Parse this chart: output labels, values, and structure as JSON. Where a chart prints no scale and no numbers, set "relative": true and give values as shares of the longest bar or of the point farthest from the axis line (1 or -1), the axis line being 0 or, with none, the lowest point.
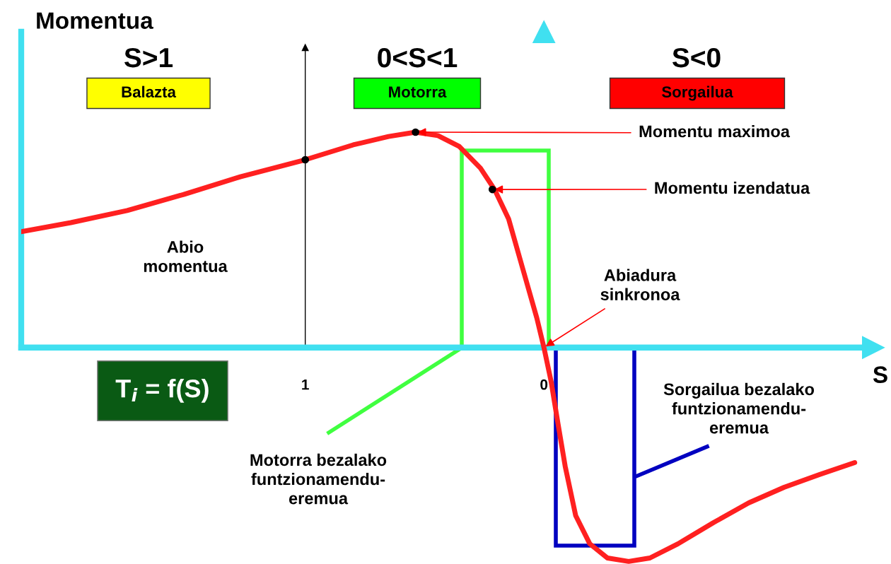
{
  "chart_data": {
    "type": "line",
    "relative": true,
    "ylabel": "Momentua",
    "xlabel": "S",
    "x": [
      2.19,
      1.982,
      1.746,
      1.509,
      1.272,
      1.0,
      0.799,
      0.651,
      0.538,
      0.444,
      0.355,
      0.266,
      0.207,
      0.148,
      0.089,
      0.03,
      0.0,
      -0.03,
      -0.059,
      -0.089,
      -0.133,
      -0.192,
      -0.266,
      -0.355,
      -0.444,
      -0.562,
      -0.71,
      -0.858,
      -1.006,
      -1.154,
      -1.302
    ],
    "xlim": [
      2.19,
      -1.38
    ],
    "xticks": [
      1,
      0
    ],
    "grid": false,
    "legend": false,
    "line_style": "solid",
    "marker": "none",
    "series": [
      {
        "color": "#ff2020",
        "values": [
          0.538,
          0.58,
          0.636,
          0.711,
          0.793,
          0.872,
          0.941,
          0.98,
          1.0,
          0.984,
          0.934,
          0.833,
          0.734,
          0.597,
          0.367,
          0.138,
          0.0,
          -0.157,
          -0.354,
          -0.551,
          -0.78,
          -0.911,
          -0.977,
          -0.993,
          -0.977,
          -0.911,
          -0.813,
          -0.721,
          -0.649,
          -0.59,
          -0.534
        ]
      },
      {
        "type": "scatter",
        "marker": "circle",
        "color": "#000000",
        "x": [
          1,
          0.538,
          0.216
        ],
        "values": [
          0.872,
          1.0,
          0.734
        ]
      }
    ],
    "ref_lines": [
      {
        "axis": "x",
        "value": 1,
        "color": "#000000"
      }
    ],
    "annotations": [
      "S>1",
      "0<S<1",
      "S<0",
      "Balazta",
      "Motorra",
      "Sorgailua",
      {
        "text": "Momentu maximoa",
        "x": 0.538,
        "y": 1.0
      },
      {
        "text": "Momentu izendatua",
        "x": 0.216,
        "y": 0.734
      },
      "Abio\nmomentua",
      {
        "text": "Abiadura\nsinkronoa",
        "x": 0,
        "y": 0
      },
      "T$_{i}$ = f(S)",
      "Motorra bezalako\nfuntzionamendu-\neremua",
      "Sorgailua bezalako\nfuntzionamendu-\neremua"
    ]
  }
}
